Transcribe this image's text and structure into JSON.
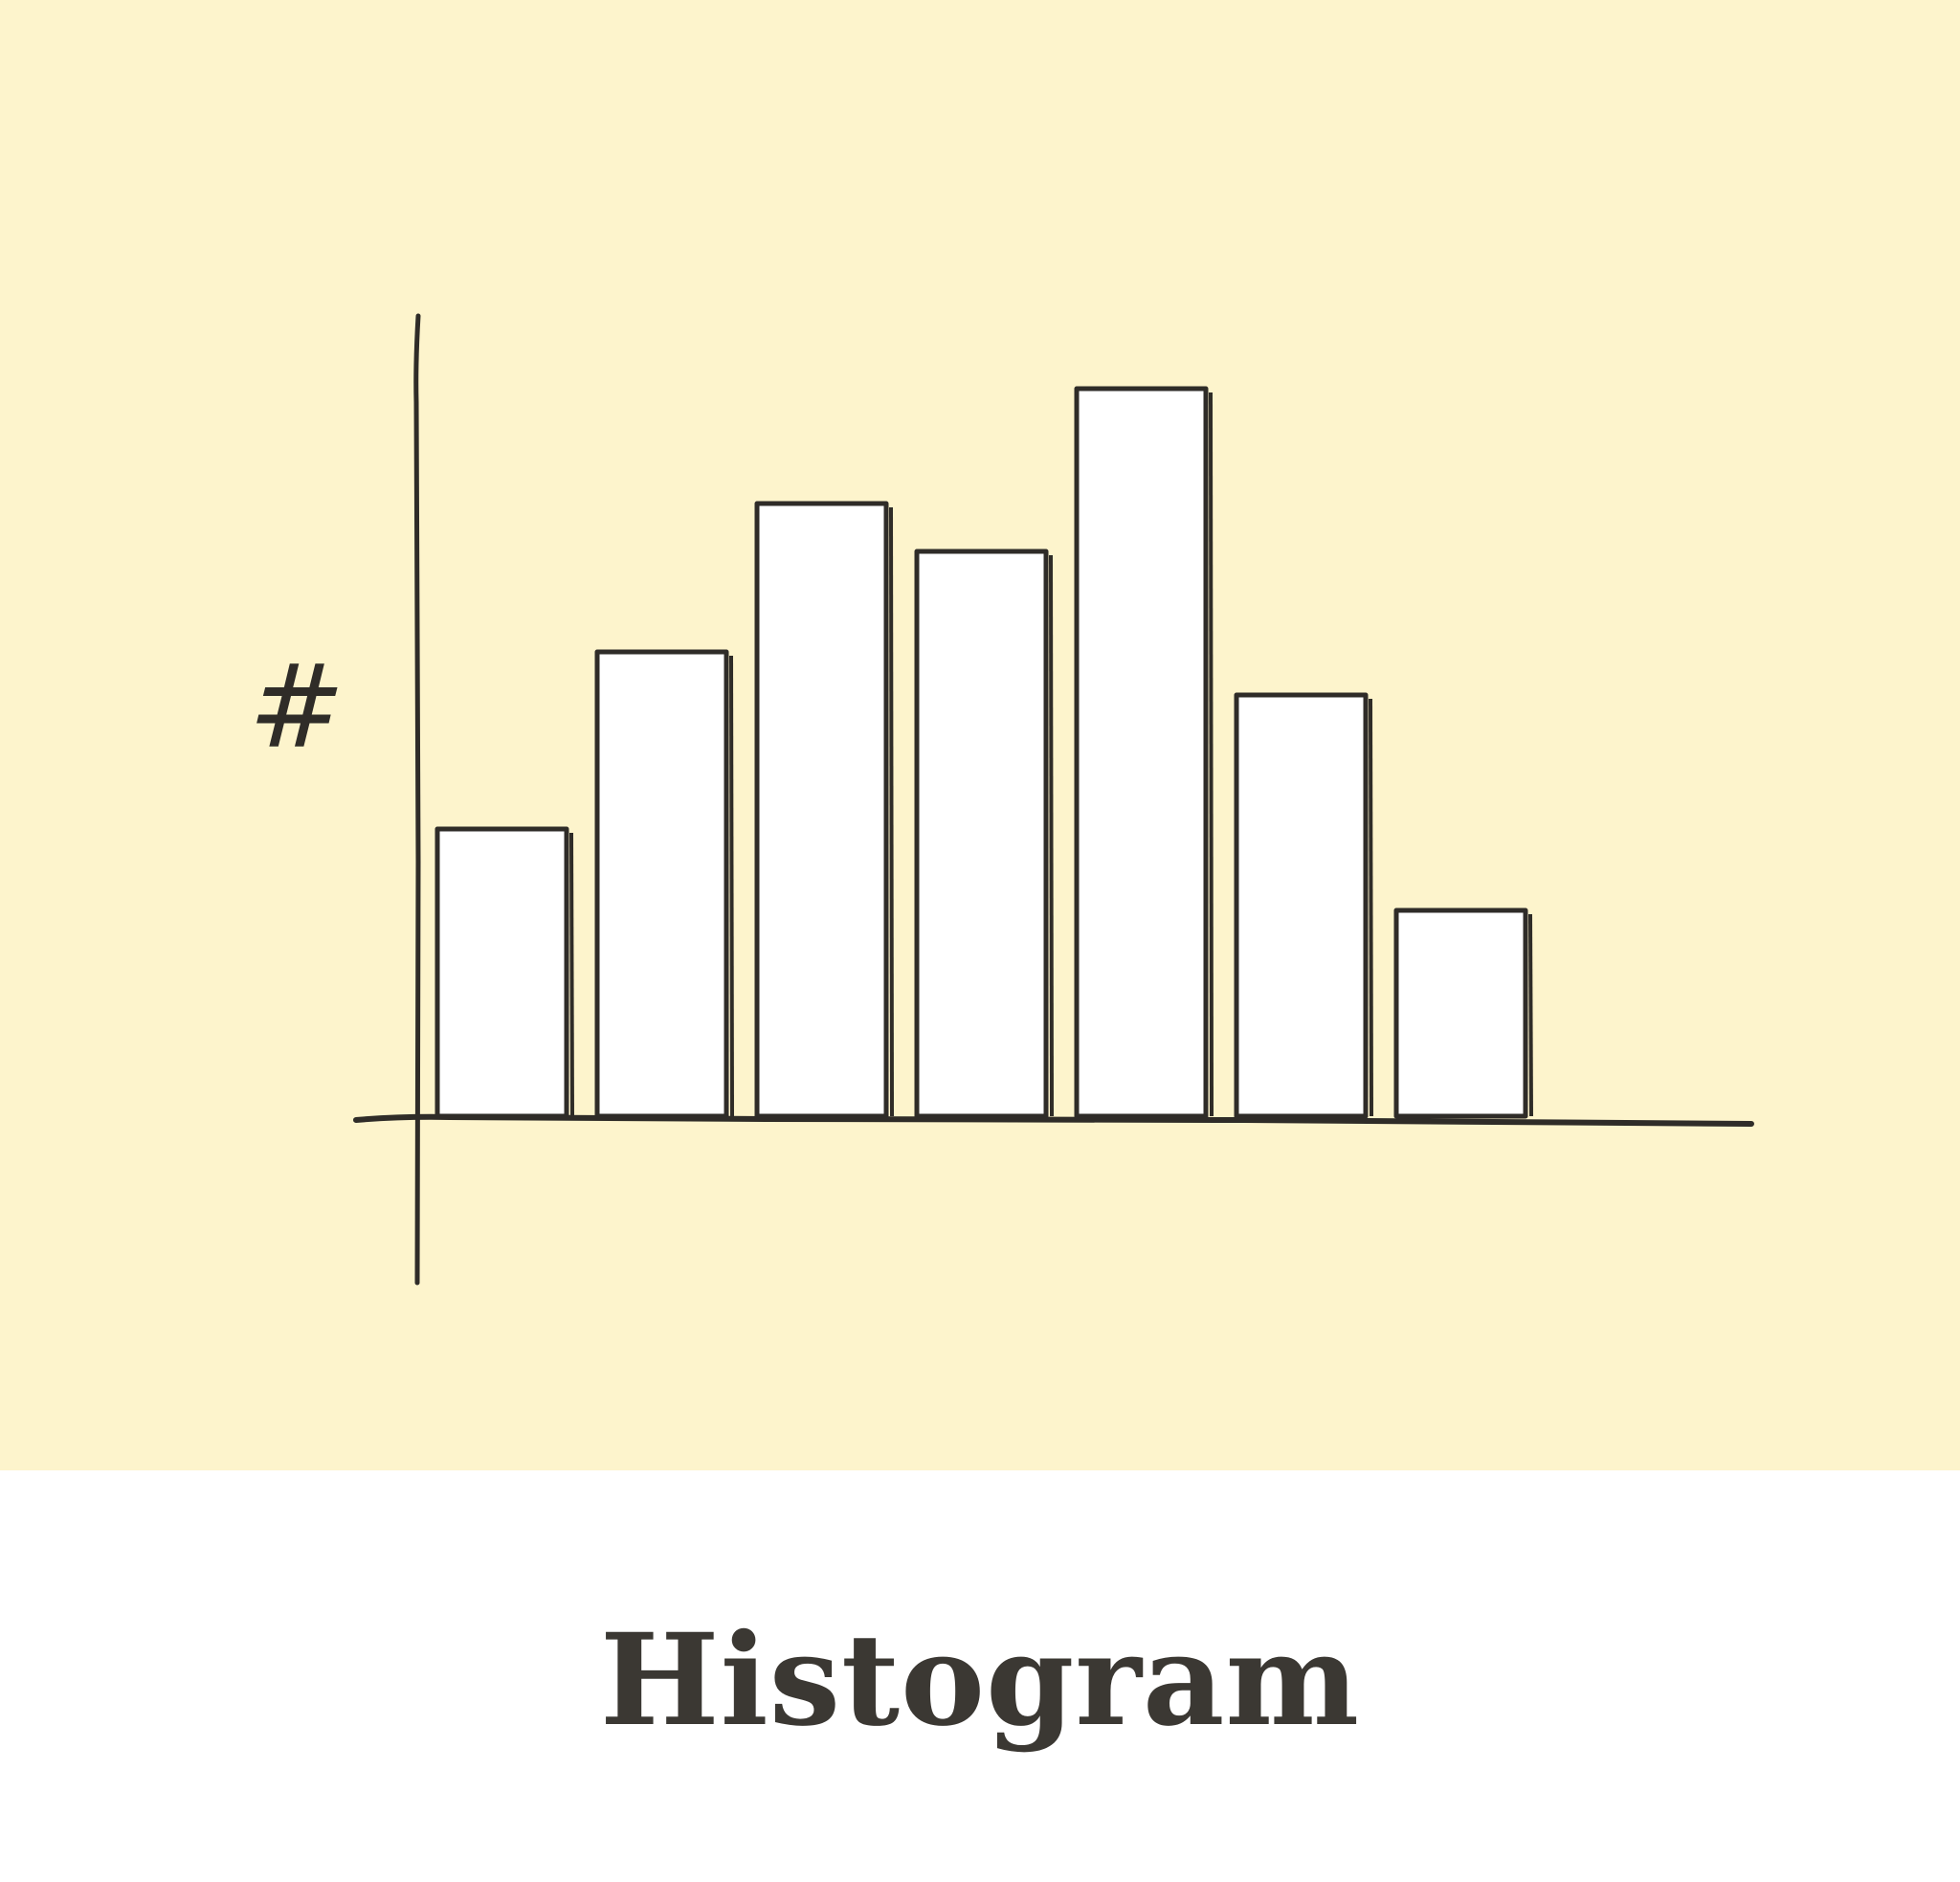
{
  "caption": "Histogram",
  "colors": {
    "background": "#fdf4cc",
    "bar_fill": "#ffffff",
    "ink": "#2f2c28",
    "caption_text": "#3b3833"
  },
  "chart_data": {
    "type": "bar",
    "title": "",
    "xlabel": "",
    "ylabel": "#",
    "values": [
      3.0,
      4.85,
      6.4,
      5.9,
      7.6,
      4.4,
      2.15
    ],
    "ylim": [
      0,
      10
    ],
    "grid": false,
    "legend": "none"
  }
}
